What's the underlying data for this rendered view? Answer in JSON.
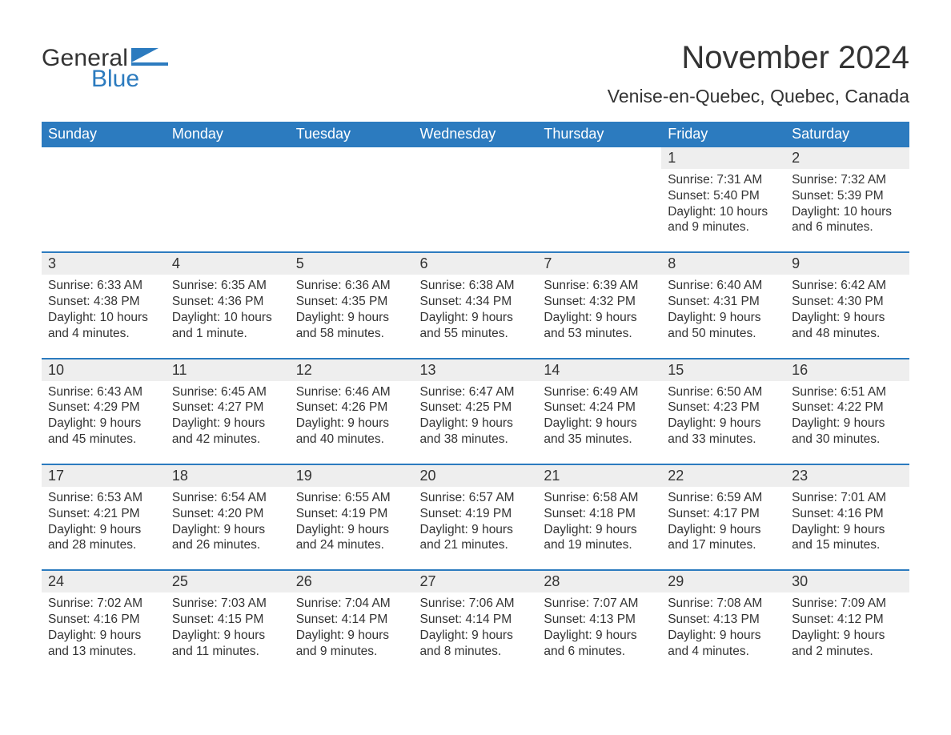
{
  "logo": {
    "word1": "General",
    "word2": "Blue",
    "flag_color": "#2c7bbf"
  },
  "title": "November 2024",
  "location": "Venise-en-Quebec, Quebec, Canada",
  "colors": {
    "header_bg": "#2c7bbf",
    "header_text": "#ffffff",
    "daynum_bg": "#eeeeee",
    "text": "#333333",
    "rule": "#2c7bbf",
    "page_bg": "#ffffff"
  },
  "day_headers": [
    "Sunday",
    "Monday",
    "Tuesday",
    "Wednesday",
    "Thursday",
    "Friday",
    "Saturday"
  ],
  "weeks": [
    [
      null,
      null,
      null,
      null,
      null,
      {
        "n": "1",
        "sunrise": "Sunrise: 7:31 AM",
        "sunset": "Sunset: 5:40 PM",
        "daylight": "Daylight: 10 hours and 9 minutes."
      },
      {
        "n": "2",
        "sunrise": "Sunrise: 7:32 AM",
        "sunset": "Sunset: 5:39 PM",
        "daylight": "Daylight: 10 hours and 6 minutes."
      }
    ],
    [
      {
        "n": "3",
        "sunrise": "Sunrise: 6:33 AM",
        "sunset": "Sunset: 4:38 PM",
        "daylight": "Daylight: 10 hours and 4 minutes."
      },
      {
        "n": "4",
        "sunrise": "Sunrise: 6:35 AM",
        "sunset": "Sunset: 4:36 PM",
        "daylight": "Daylight: 10 hours and 1 minute."
      },
      {
        "n": "5",
        "sunrise": "Sunrise: 6:36 AM",
        "sunset": "Sunset: 4:35 PM",
        "daylight": "Daylight: 9 hours and 58 minutes."
      },
      {
        "n": "6",
        "sunrise": "Sunrise: 6:38 AM",
        "sunset": "Sunset: 4:34 PM",
        "daylight": "Daylight: 9 hours and 55 minutes."
      },
      {
        "n": "7",
        "sunrise": "Sunrise: 6:39 AM",
        "sunset": "Sunset: 4:32 PM",
        "daylight": "Daylight: 9 hours and 53 minutes."
      },
      {
        "n": "8",
        "sunrise": "Sunrise: 6:40 AM",
        "sunset": "Sunset: 4:31 PM",
        "daylight": "Daylight: 9 hours and 50 minutes."
      },
      {
        "n": "9",
        "sunrise": "Sunrise: 6:42 AM",
        "sunset": "Sunset: 4:30 PM",
        "daylight": "Daylight: 9 hours and 48 minutes."
      }
    ],
    [
      {
        "n": "10",
        "sunrise": "Sunrise: 6:43 AM",
        "sunset": "Sunset: 4:29 PM",
        "daylight": "Daylight: 9 hours and 45 minutes."
      },
      {
        "n": "11",
        "sunrise": "Sunrise: 6:45 AM",
        "sunset": "Sunset: 4:27 PM",
        "daylight": "Daylight: 9 hours and 42 minutes."
      },
      {
        "n": "12",
        "sunrise": "Sunrise: 6:46 AM",
        "sunset": "Sunset: 4:26 PM",
        "daylight": "Daylight: 9 hours and 40 minutes."
      },
      {
        "n": "13",
        "sunrise": "Sunrise: 6:47 AM",
        "sunset": "Sunset: 4:25 PM",
        "daylight": "Daylight: 9 hours and 38 minutes."
      },
      {
        "n": "14",
        "sunrise": "Sunrise: 6:49 AM",
        "sunset": "Sunset: 4:24 PM",
        "daylight": "Daylight: 9 hours and 35 minutes."
      },
      {
        "n": "15",
        "sunrise": "Sunrise: 6:50 AM",
        "sunset": "Sunset: 4:23 PM",
        "daylight": "Daylight: 9 hours and 33 minutes."
      },
      {
        "n": "16",
        "sunrise": "Sunrise: 6:51 AM",
        "sunset": "Sunset: 4:22 PM",
        "daylight": "Daylight: 9 hours and 30 minutes."
      }
    ],
    [
      {
        "n": "17",
        "sunrise": "Sunrise: 6:53 AM",
        "sunset": "Sunset: 4:21 PM",
        "daylight": "Daylight: 9 hours and 28 minutes."
      },
      {
        "n": "18",
        "sunrise": "Sunrise: 6:54 AM",
        "sunset": "Sunset: 4:20 PM",
        "daylight": "Daylight: 9 hours and 26 minutes."
      },
      {
        "n": "19",
        "sunrise": "Sunrise: 6:55 AM",
        "sunset": "Sunset: 4:19 PM",
        "daylight": "Daylight: 9 hours and 24 minutes."
      },
      {
        "n": "20",
        "sunrise": "Sunrise: 6:57 AM",
        "sunset": "Sunset: 4:19 PM",
        "daylight": "Daylight: 9 hours and 21 minutes."
      },
      {
        "n": "21",
        "sunrise": "Sunrise: 6:58 AM",
        "sunset": "Sunset: 4:18 PM",
        "daylight": "Daylight: 9 hours and 19 minutes."
      },
      {
        "n": "22",
        "sunrise": "Sunrise: 6:59 AM",
        "sunset": "Sunset: 4:17 PM",
        "daylight": "Daylight: 9 hours and 17 minutes."
      },
      {
        "n": "23",
        "sunrise": "Sunrise: 7:01 AM",
        "sunset": "Sunset: 4:16 PM",
        "daylight": "Daylight: 9 hours and 15 minutes."
      }
    ],
    [
      {
        "n": "24",
        "sunrise": "Sunrise: 7:02 AM",
        "sunset": "Sunset: 4:16 PM",
        "daylight": "Daylight: 9 hours and 13 minutes."
      },
      {
        "n": "25",
        "sunrise": "Sunrise: 7:03 AM",
        "sunset": "Sunset: 4:15 PM",
        "daylight": "Daylight: 9 hours and 11 minutes."
      },
      {
        "n": "26",
        "sunrise": "Sunrise: 7:04 AM",
        "sunset": "Sunset: 4:14 PM",
        "daylight": "Daylight: 9 hours and 9 minutes."
      },
      {
        "n": "27",
        "sunrise": "Sunrise: 7:06 AM",
        "sunset": "Sunset: 4:14 PM",
        "daylight": "Daylight: 9 hours and 8 minutes."
      },
      {
        "n": "28",
        "sunrise": "Sunrise: 7:07 AM",
        "sunset": "Sunset: 4:13 PM",
        "daylight": "Daylight: 9 hours and 6 minutes."
      },
      {
        "n": "29",
        "sunrise": "Sunrise: 7:08 AM",
        "sunset": "Sunset: 4:13 PM",
        "daylight": "Daylight: 9 hours and 4 minutes."
      },
      {
        "n": "30",
        "sunrise": "Sunrise: 7:09 AM",
        "sunset": "Sunset: 4:12 PM",
        "daylight": "Daylight: 9 hours and 2 minutes."
      }
    ]
  ]
}
